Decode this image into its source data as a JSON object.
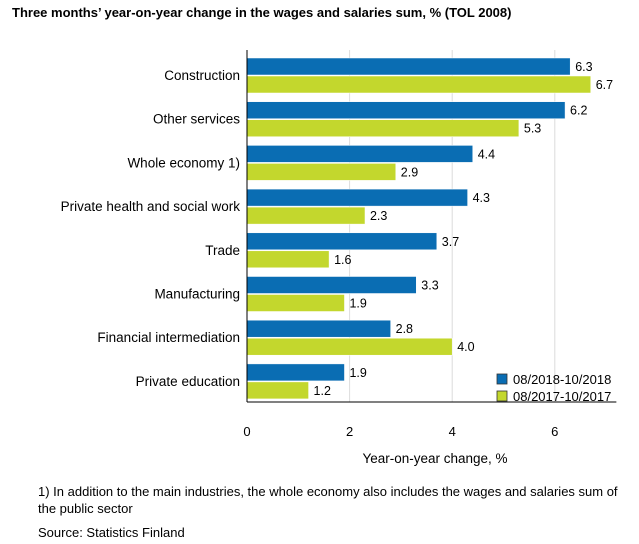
{
  "chart_data": {
    "type": "bar",
    "orientation": "horizontal",
    "title": "Three months’ year-on-year change in the wages and salaries sum, % (TOL 2008)",
    "categories": [
      "Construction",
      "Other services",
      "Whole economy 1)",
      "Private health and social work",
      "Trade",
      "Manufacturing",
      "Financial intermediation",
      "Private education"
    ],
    "series": [
      {
        "name": "08/2018-10/2018",
        "color": "#0a6db3",
        "values": [
          6.3,
          6.2,
          4.4,
          4.3,
          3.7,
          3.3,
          2.8,
          1.9
        ]
      },
      {
        "name": "08/2017-10/2017",
        "color": "#c3d72d",
        "values": [
          6.7,
          5.3,
          2.9,
          2.3,
          1.6,
          1.9,
          4.0,
          1.2
        ]
      }
    ],
    "xlabel": "Year-on-year change, %",
    "xticks": [
      "0",
      "2",
      "4",
      "6"
    ],
    "xlim": [
      0,
      7.2
    ],
    "grid": true,
    "legend": "bottom-right"
  },
  "footnote": "1) In addition to the main industries, the whole economy also includes the wages and salaries sum of the public sector",
  "source": "Source: Statistics Finland"
}
